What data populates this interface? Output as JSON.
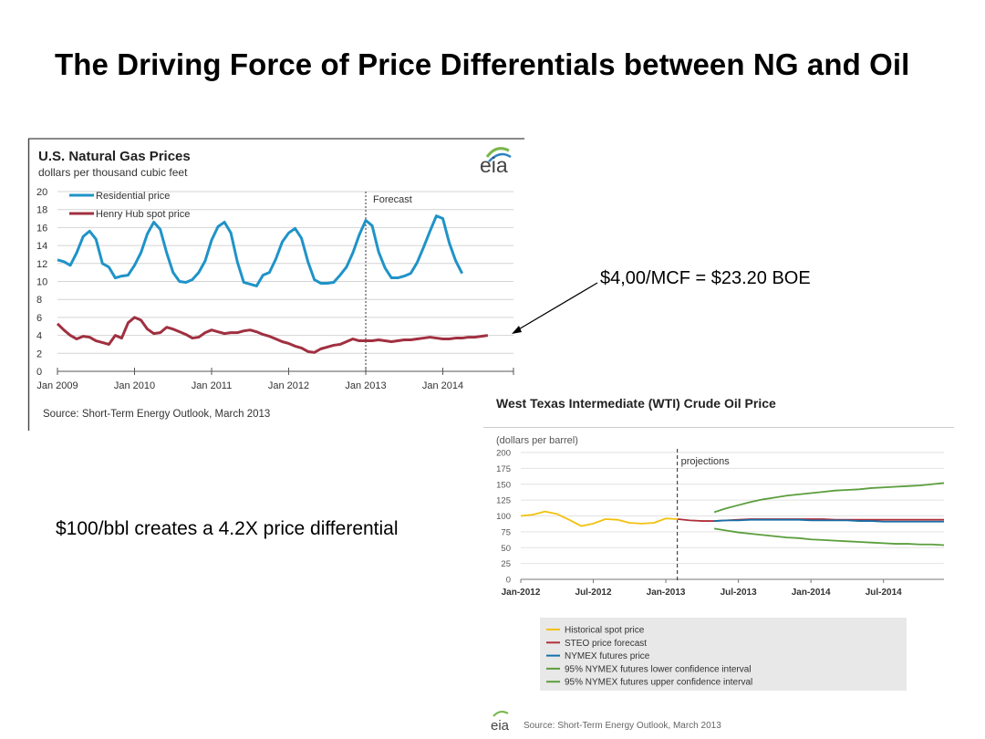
{
  "slide": {
    "title": "The Driving Force of Price Differentials between NG and Oil",
    "annotation_gas": "$4,00/MCF = $23.20 BOE",
    "annotation_oil": "$100/bbl creates a 4.2X price differential"
  },
  "colors": {
    "residential": "#1f93c8",
    "henry_hub": "#a03040",
    "historical_spot": "#f2c10e",
    "steo": "#b0303c",
    "nymex": "#1670a8",
    "ci_lower": "#5b9e3c",
    "ci_upper": "#5b9e3c"
  },
  "chart_data": [
    {
      "type": "line",
      "title": "U.S. Natural Gas Prices",
      "ylabel": "dollars per thousand cubic feet",
      "logo": "eia",
      "forecast_label": "Forecast",
      "forecast_start_month": 48,
      "source": "Source: Short-Term Energy Outlook, March 2013",
      "ylim": [
        0,
        20
      ],
      "yticks": [
        "0",
        "2",
        "4",
        "6",
        "8",
        "10",
        "12",
        "14",
        "16",
        "18",
        "20"
      ],
      "xlim": [
        0,
        71
      ],
      "xticks": [
        {
          "label": "Jan 2009",
          "month": 0
        },
        {
          "label": "Jan 2010",
          "month": 12
        },
        {
          "label": "Jan 2011",
          "month": 24
        },
        {
          "label": "Jan 2012",
          "month": 36
        },
        {
          "label": "Jan 2013",
          "month": 48
        },
        {
          "label": "Jan 2014",
          "month": 60
        }
      ],
      "series": [
        {
          "name": "Residential price",
          "color_key": "residential",
          "values": [
            12.4,
            12.2,
            11.8,
            13.2,
            15.0,
            15.6,
            14.7,
            12.0,
            11.6,
            10.4,
            10.6,
            10.7,
            11.8,
            13.2,
            15.3,
            16.6,
            15.8,
            13.2,
            11.0,
            10.0,
            9.9,
            10.2,
            11.0,
            12.3,
            14.6,
            16.1,
            16.6,
            15.4,
            12.2,
            9.9,
            9.7,
            9.5,
            10.7,
            11.0,
            12.5,
            14.4,
            15.4,
            15.9,
            14.8,
            12.2,
            10.2,
            9.8,
            9.8,
            9.9,
            10.7,
            11.6,
            13.2,
            15.2,
            16.8,
            16.2,
            13.3,
            11.5,
            10.4,
            10.4,
            10.6,
            10.9,
            12.1,
            13.8,
            15.6,
            17.3,
            17.0,
            14.3,
            12.3,
            10.9
          ]
        },
        {
          "name": "Henry Hub spot price",
          "color_key": "henry_hub",
          "values": [
            5.3,
            4.6,
            4.0,
            3.6,
            3.9,
            3.8,
            3.4,
            3.2,
            3.0,
            4.0,
            3.7,
            5.4,
            6.0,
            5.7,
            4.7,
            4.2,
            4.3,
            4.9,
            4.7,
            4.4,
            4.1,
            3.7,
            3.8,
            4.3,
            4.6,
            4.4,
            4.2,
            4.3,
            4.3,
            4.5,
            4.6,
            4.4,
            4.1,
            3.9,
            3.6,
            3.3,
            3.1,
            2.8,
            2.6,
            2.2,
            2.1,
            2.5,
            2.7,
            2.9,
            3.0,
            3.3,
            3.6,
            3.4,
            3.4,
            3.4,
            3.5,
            3.4,
            3.3,
            3.4,
            3.5,
            3.5,
            3.6,
            3.7,
            3.8,
            3.7,
            3.6,
            3.6,
            3.7,
            3.7,
            3.8,
            3.8,
            3.9,
            4.0
          ]
        }
      ]
    },
    {
      "type": "line",
      "title": "West Texas Intermediate (WTI) Crude Oil Price",
      "ylabel": "(dollars per barrel)",
      "projections_label": "projections",
      "projection_start_month": 14,
      "source": "Source: Short-Term Energy Outlook, March 2013",
      "logo": "eia",
      "ylim": [
        0,
        200
      ],
      "yticks": [
        "0",
        "25",
        "50",
        "75",
        "100",
        "125",
        "150",
        "175",
        "200"
      ],
      "xlim": [
        0,
        35
      ],
      "xticks": [
        {
          "label": "Jan-2012",
          "month": 0
        },
        {
          "label": "Jul-2012",
          "month": 6
        },
        {
          "label": "Jan-2013",
          "month": 12
        },
        {
          "label": "Jul-2013",
          "month": 18
        },
        {
          "label": "Jan-2014",
          "month": 24
        },
        {
          "label": "Jul-2014",
          "month": 30
        }
      ],
      "series": [
        {
          "name": "Historical spot price",
          "color_key": "historical_spot",
          "start": 0,
          "values": [
            100,
            102,
            107,
            103,
            94,
            84,
            88,
            95,
            94,
            89,
            88,
            89,
            96,
            95
          ]
        },
        {
          "name": "STEO price forecast",
          "color_key": "steo",
          "start": 13,
          "values": [
            95,
            93,
            92,
            92,
            93,
            94,
            95,
            95,
            95,
            95,
            95,
            95,
            95,
            94,
            94,
            94,
            94,
            94,
            94,
            94,
            94,
            94,
            94
          ]
        },
        {
          "name": "NYMEX futures price",
          "color_key": "nymex",
          "start": 16,
          "values": [
            92,
            93,
            93,
            94,
            94,
            94,
            94,
            94,
            93,
            93,
            93,
            93,
            92,
            92,
            91,
            91,
            91,
            91,
            91,
            91
          ]
        },
        {
          "name": "95% NYMEX futures lower confidence interval",
          "color_key": "ci_lower",
          "start": 16,
          "values": [
            80,
            77,
            74,
            72,
            70,
            68,
            66,
            65,
            63,
            62,
            61,
            60,
            59,
            58,
            57,
            56,
            56,
            55,
            55,
            54
          ]
        },
        {
          "name": "95% NYMEX futures upper confidence interval",
          "color_key": "ci_upper",
          "start": 16,
          "values": [
            106,
            112,
            117,
            122,
            126,
            129,
            132,
            134,
            136,
            138,
            140,
            141,
            142,
            144,
            145,
            146,
            147,
            148,
            150,
            152
          ]
        }
      ]
    }
  ]
}
